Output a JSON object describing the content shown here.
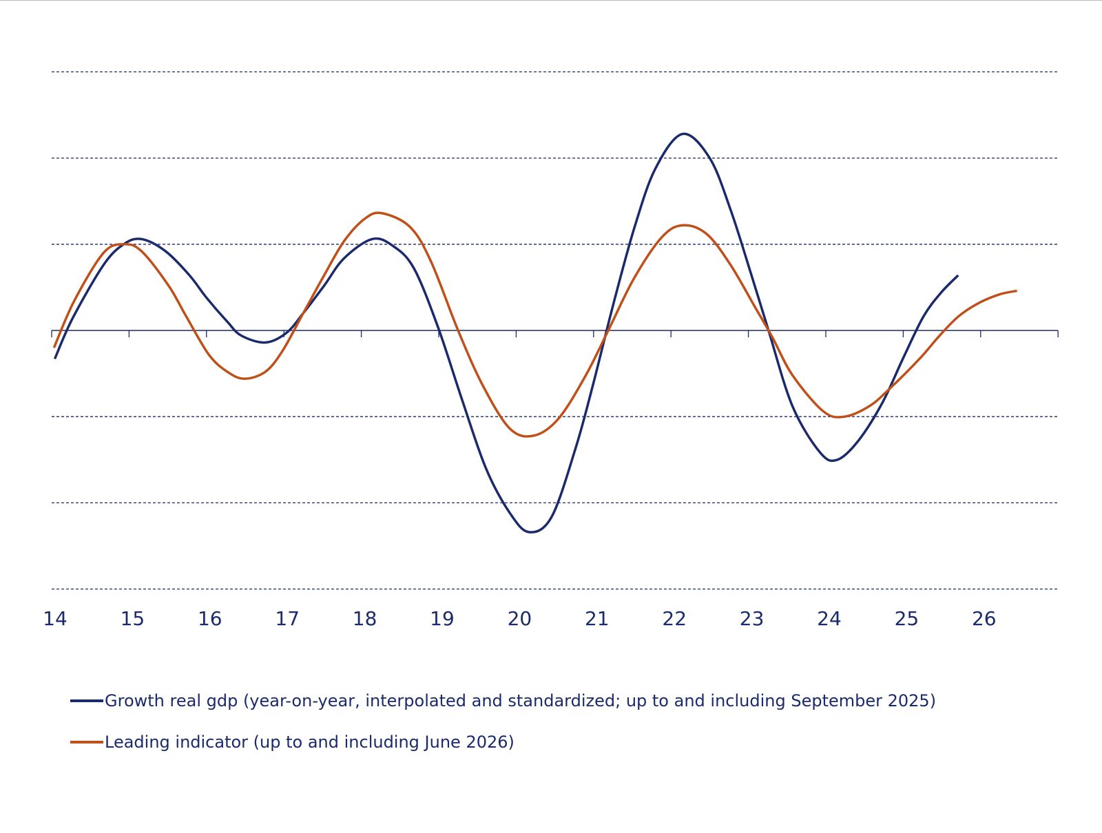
{
  "chart_data": {
    "type": "line",
    "title": "",
    "xlabel": "",
    "ylabel": "",
    "x_tick_labels": [
      "14",
      "15",
      "16",
      "17",
      "18",
      "19",
      "20",
      "21",
      "22",
      "23",
      "24",
      "25",
      "26"
    ],
    "xlim": [
      2014,
      2027
    ],
    "ylim": [
      -3,
      3
    ],
    "y_gridlines": [
      -3,
      -2,
      -1,
      1,
      2,
      3
    ],
    "grid": "horizontal dashed",
    "legend_position": "bottom",
    "series": [
      {
        "name": "Growth real gdp (year-on-year, interpolated and standardized; up to and including September 2025)",
        "color": "#1b2a6b",
        "x": [
          2014.04,
          2014.27,
          2014.67,
          2014.93,
          2015.16,
          2015.47,
          2015.78,
          2016.0,
          2016.27,
          2016.45,
          2016.76,
          2017.03,
          2017.25,
          2017.52,
          2017.78,
          2018.14,
          2018.41,
          2018.68,
          2018.99,
          2019.3,
          2019.61,
          2019.92,
          2020.17,
          2020.46,
          2020.77,
          2020.99,
          2021.26,
          2021.53,
          2021.8,
          2022.15,
          2022.5,
          2022.77,
          2023.04,
          2023.26,
          2023.57,
          2023.93,
          2024.15,
          2024.42,
          2024.73,
          2025.0,
          2025.26,
          2025.49,
          2025.71
        ],
        "y": [
          -0.33,
          0.14,
          0.76,
          1.0,
          1.06,
          0.92,
          0.64,
          0.38,
          0.1,
          -0.06,
          -0.14,
          -0.03,
          0.2,
          0.52,
          0.84,
          1.06,
          0.98,
          0.72,
          0.04,
          -0.8,
          -1.6,
          -2.12,
          -2.34,
          -2.16,
          -1.36,
          -0.64,
          0.32,
          1.2,
          1.88,
          2.28,
          2.0,
          1.4,
          0.64,
          0.0,
          -0.88,
          -1.42,
          -1.5,
          -1.28,
          -0.84,
          -0.32,
          0.16,
          0.44,
          0.64
        ]
      },
      {
        "name": "Leading indicator (up to and including June 2026)",
        "color": "#c0501a",
        "x": [
          2014.03,
          2014.29,
          2014.67,
          2014.93,
          2015.16,
          2015.51,
          2015.74,
          2016.03,
          2016.27,
          2016.49,
          2016.76,
          2016.98,
          2017.25,
          2017.52,
          2017.78,
          2018.05,
          2018.27,
          2018.63,
          2018.9,
          2019.25,
          2019.57,
          2019.92,
          2020.23,
          2020.55,
          2020.9,
          2021.19,
          2021.52,
          2021.88,
          2022.15,
          2022.46,
          2022.77,
          2023.08,
          2023.31,
          2023.57,
          2023.97,
          2024.24,
          2024.56,
          2024.82,
          2025.22,
          2025.45,
          2025.71,
          2025.98,
          2026.25,
          2026.47
        ],
        "y": [
          -0.2,
          0.34,
          0.9,
          1.0,
          0.92,
          0.52,
          0.16,
          -0.28,
          -0.48,
          -0.56,
          -0.48,
          -0.24,
          0.2,
          0.64,
          1.04,
          1.3,
          1.36,
          1.2,
          0.8,
          0.0,
          -0.64,
          -1.14,
          -1.22,
          -1.02,
          -0.52,
          0.0,
          0.6,
          1.08,
          1.22,
          1.12,
          0.76,
          0.28,
          -0.08,
          -0.52,
          -0.94,
          -1.0,
          -0.88,
          -0.68,
          -0.32,
          -0.08,
          0.16,
          0.32,
          0.42,
          0.46
        ]
      }
    ]
  }
}
